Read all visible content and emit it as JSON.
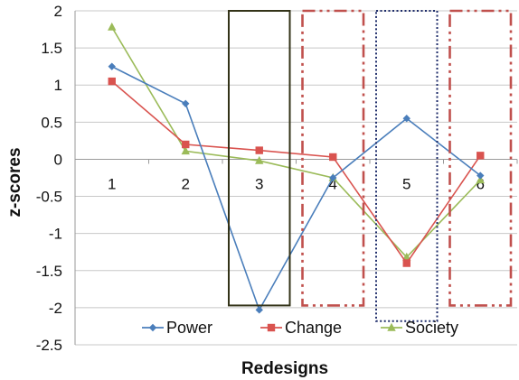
{
  "chart_data": {
    "type": "line",
    "title": "",
    "xlabel": "Redesigns",
    "ylabel": "z-scores",
    "categories": [
      "1",
      "2",
      "3",
      "4",
      "5",
      "6"
    ],
    "ylim": [
      -2.5,
      2
    ],
    "yticks": [
      "2",
      "1.5",
      "1",
      "0.5",
      "0",
      "-0.5",
      "-1",
      "-1.5",
      "-2",
      "-2.5"
    ],
    "grid": true,
    "legend_position": "bottom",
    "series": [
      {
        "name": "Power",
        "color": "#4a7ebb",
        "marker": "diamond",
        "values": [
          1.25,
          0.75,
          -2.03,
          -0.25,
          0.55,
          -0.22
        ]
      },
      {
        "name": "Change",
        "color": "#d9534f",
        "marker": "square",
        "values": [
          1.05,
          0.2,
          0.12,
          0.03,
          -1.4,
          0.05
        ]
      },
      {
        "name": "Society",
        "color": "#9bbb59",
        "marker": "triangle",
        "values": [
          1.78,
          0.11,
          -0.02,
          -0.25,
          -1.32,
          -0.28
        ]
      }
    ],
    "annotations": [
      {
        "shape": "box",
        "style": "solid",
        "color": "#333318",
        "category": "3",
        "y_range": [
          -1.97,
          2
        ]
      },
      {
        "shape": "box",
        "style": "dash-dot",
        "color": "#c0504d",
        "category": "4",
        "y_range": [
          -1.97,
          2
        ]
      },
      {
        "shape": "box",
        "style": "dotted",
        "color": "#1f2d6b",
        "category": "5",
        "y_range": [
          -2.18,
          2
        ]
      },
      {
        "shape": "box",
        "style": "dash-dot",
        "color": "#c0504d",
        "category": "6",
        "y_range": [
          -1.97,
          2
        ]
      }
    ]
  }
}
